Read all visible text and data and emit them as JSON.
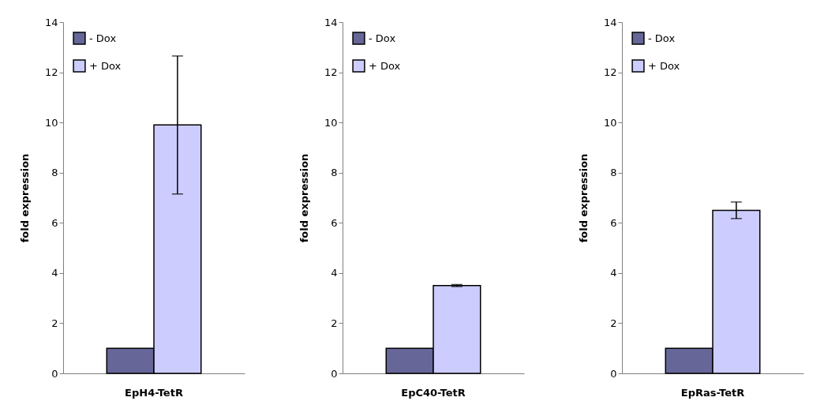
{
  "chart_data": [
    {
      "type": "bar",
      "categories": [
        "EpH4-TetR"
      ],
      "ylabel": "fold expression",
      "ylim": [
        0,
        14
      ],
      "yticks": [
        0,
        2,
        4,
        6,
        8,
        10,
        12,
        14
      ],
      "grid": false,
      "legend": "top left",
      "series": [
        {
          "name": "- Dox",
          "color": "#666699",
          "values": [
            1
          ]
        },
        {
          "name": "+ Dox",
          "color": "#ccccff",
          "values": [
            9.9
          ],
          "errors": [
            [
              7.15,
              12.65
            ]
          ]
        }
      ]
    },
    {
      "type": "bar",
      "categories": [
        "EpC40-TetR"
      ],
      "ylabel": "fold expression",
      "ylim": [
        0,
        14
      ],
      "yticks": [
        0,
        2,
        4,
        6,
        8,
        10,
        12,
        14
      ],
      "grid": false,
      "legend": "top left",
      "series": [
        {
          "name": "- Dox",
          "color": "#666699",
          "values": [
            1
          ]
        },
        {
          "name": "+ Dox",
          "color": "#ccccff",
          "values": [
            3.5
          ],
          "errors": [
            0.04
          ]
        }
      ]
    },
    {
      "type": "bar",
      "categories": [
        "EpRas-TetR"
      ],
      "ylabel": "fold expression",
      "ylim": [
        0,
        14
      ],
      "yticks": [
        0,
        2,
        4,
        6,
        8,
        10,
        12,
        14
      ],
      "grid": false,
      "legend": "top left",
      "series": [
        {
          "name": "- Dox",
          "color": "#666699",
          "values": [
            1
          ]
        },
        {
          "name": "+ Dox",
          "color": "#ccccff",
          "values": [
            6.5
          ],
          "errors": [
            [
              6.17,
              6.83
            ]
          ]
        }
      ]
    }
  ]
}
